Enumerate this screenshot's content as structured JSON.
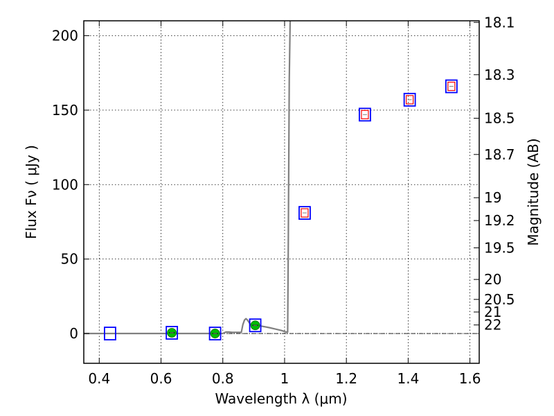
{
  "chart_data": {
    "type": "scatter",
    "xlabel": "Wavelength  λ (μm)",
    "ylabel": "Flux  Fν  ( μJy )",
    "y2label": "Magnitude (AB)",
    "xlim": [
      0.35,
      1.63
    ],
    "ylim": [
      -20,
      210
    ],
    "grid": true,
    "x_ticks": [
      0.4,
      0.6,
      0.8,
      1.0,
      1.2,
      1.4,
      1.6
    ],
    "x_tick_labels": [
      "0.4",
      "0.6",
      "0.8",
      "1",
      "1.2",
      "1.4",
      "1.6"
    ],
    "y_ticks": [
      0,
      50,
      100,
      150,
      200
    ],
    "y_tick_labels": [
      "0",
      "50",
      "100",
      "150",
      "200"
    ],
    "mag_ticks": [
      18.1,
      18.3,
      18.5,
      18.7,
      19,
      19.2,
      19.5,
      20,
      20.5,
      21,
      22
    ],
    "mag_tick_labels": [
      "18.1",
      "18.3",
      "18.5",
      "18.7",
      "19",
      "19.2",
      "19.5",
      "20",
      "20.5",
      "21",
      "22"
    ],
    "series": [
      {
        "kind": "model-spectrum",
        "color": "#808080",
        "x": [
          0.35,
          0.79,
          0.8,
          0.81,
          0.82,
          0.83,
          0.85,
          0.86,
          0.865,
          0.87,
          0.875,
          0.88,
          0.89,
          0.9,
          0.95,
          0.97,
          0.99,
          1.005,
          1.01,
          1.012,
          1.015,
          1.018
        ],
        "y": [
          0,
          0,
          0,
          1,
          1,
          0.8,
          0.8,
          0.8,
          6,
          9,
          10,
          9,
          6,
          6,
          4,
          3,
          2,
          1,
          1,
          60,
          170,
          210
        ]
      },
      {
        "kind": "photometry-squares",
        "color": "#0000ff",
        "x": [
          0.435,
          0.635,
          0.775,
          0.905,
          1.065,
          1.26,
          1.405,
          1.54
        ],
        "y": [
          0,
          0.5,
          0,
          5.5,
          81,
          147,
          157,
          166
        ]
      },
      {
        "kind": "model-photometry-squares",
        "color": "#ff0000",
        "x": [
          1.065,
          1.26,
          1.405,
          1.54
        ],
        "y": [
          81,
          147,
          157,
          166
        ]
      },
      {
        "kind": "detections",
        "color": "#00bb00",
        "x": [
          0.635,
          0.775,
          0.905
        ],
        "y": [
          0.5,
          0,
          5.5
        ]
      }
    ]
  }
}
